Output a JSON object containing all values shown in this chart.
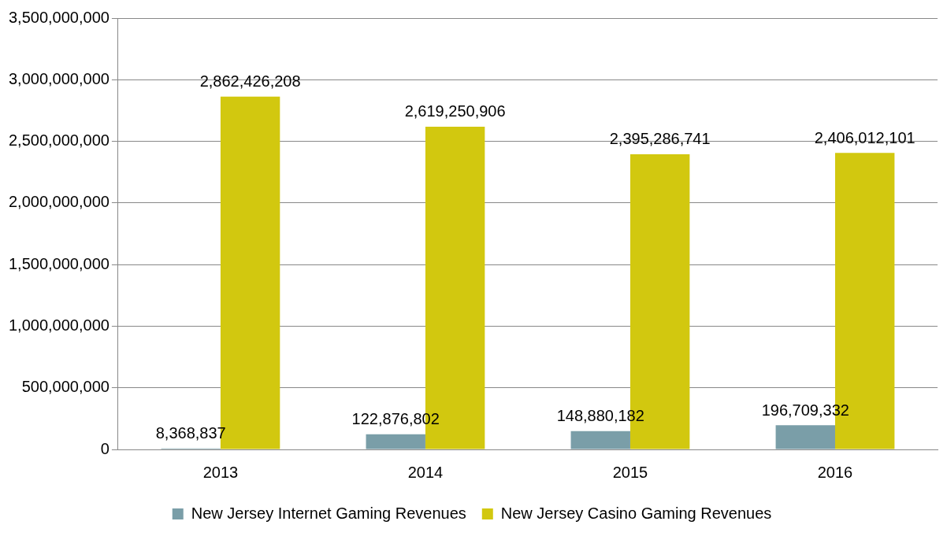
{
  "chart_data": {
    "type": "bar",
    "categories": [
      "2013",
      "2014",
      "2015",
      "2016"
    ],
    "series": [
      {
        "name": "New Jersey Internet Gaming Revenues",
        "color": "#7a9ea8",
        "values": [
          8368837,
          122876802,
          148880182,
          196709332
        ],
        "value_labels": [
          "8,368,837",
          "122,876,802",
          "148,880,182",
          "196,709,332"
        ]
      },
      {
        "name": "New Jersey Casino Gaming Revenues",
        "color": "#d2c80f",
        "values": [
          2862426208,
          2619250906,
          2395286741,
          2406012101
        ],
        "value_labels": [
          "2,862,426,208",
          "2,619,250,906",
          "2,395,286,741",
          "2,406,012,101"
        ]
      }
    ],
    "ylim": [
      0,
      3500000000
    ],
    "yticks": [
      0,
      {
        "value": 500000000,
        "label": "500,000,000"
      },
      {
        "value": 1000000000,
        "label": "1,000,000,000"
      },
      {
        "value": 1500000000,
        "label": "1,500,000,000"
      },
      {
        "value": 2000000000,
        "label": "2,000,000,000"
      },
      {
        "value": 2500000000,
        "label": "2,500,000,000"
      },
      {
        "value": 3000000000,
        "label": "3,000,000,000"
      },
      {
        "value": 3500000000,
        "label": "3,500,000,000"
      }
    ],
    "grid": "y",
    "legend": "bottom"
  }
}
